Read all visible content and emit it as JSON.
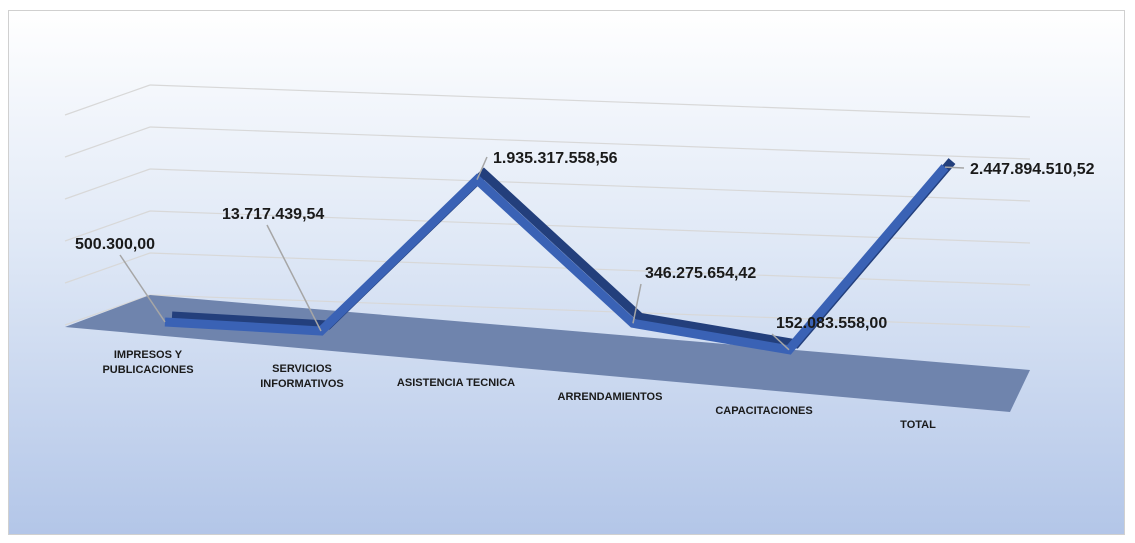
{
  "chart_data": {
    "type": "line3d",
    "categories": [
      "IMPRESOS Y PUBLICACIONES",
      "SERVICIOS INFORMATIVOS",
      "ASISTENCIA TECNICA",
      "ARRENDAMIENTOS",
      "CAPACITACIONES",
      "TOTAL"
    ],
    "values": [
      500300.0,
      13717439.54,
      1935317558.56,
      346275654.42,
      152083558.0,
      2447894510.52
    ],
    "value_labels": [
      "500.300,00",
      "13.717.439,54",
      "1.935.317.558,56",
      "346.275.654,42",
      "152.083.558,00",
      "2.447.894.510,52"
    ],
    "color": "#3a62b5",
    "ylim": [
      0,
      2500000000
    ],
    "ygrid": [
      0,
      500000000,
      1000000000,
      1500000000,
      2000000000,
      2500000000
    ]
  }
}
